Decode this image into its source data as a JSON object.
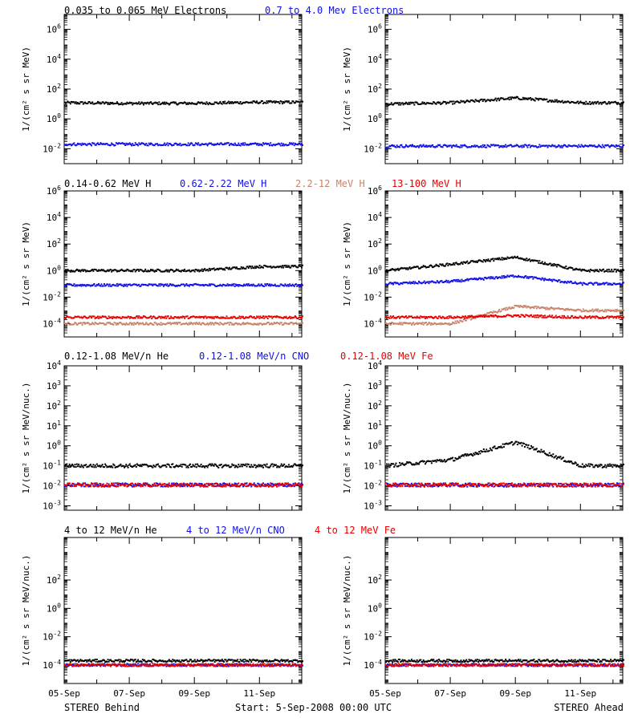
{
  "colors": {
    "black": "#000000",
    "blue": "#1010e6",
    "tan": "#c8846a",
    "red": "#e60000",
    "gray": "#8c8c8c"
  },
  "row_headers": [
    [
      {
        "text": "0.035 to 0.065 MeV Electrons",
        "color": "#000000"
      },
      {
        "text": "0.7 to 4.0 Mev Electrons",
        "color": "#1010e6"
      }
    ],
    [
      {
        "text": "0.14-0.62 MeV H",
        "color": "#000000"
      },
      {
        "text": "0.62-2.22 MeV H",
        "color": "#1010e6"
      },
      {
        "text": "2.2-12 MeV H",
        "color": "#c8846a"
      },
      {
        "text": "13-100 MeV H",
        "color": "#e60000"
      }
    ],
    [
      {
        "text": "0.12-1.08 MeV/n He",
        "color": "#000000"
      },
      {
        "text": "0.12-1.08 MeV/n CNO",
        "color": "#1010e6"
      },
      {
        "text": "0.12-1.08 MeV Fe",
        "color": "#e60000"
      }
    ],
    [
      {
        "text": "4 to 12 MeV/n He",
        "color": "#000000"
      },
      {
        "text": "4 to 12 MeV/n CNO",
        "color": "#1010e6"
      },
      {
        "text": "4 to 12 MeV Fe",
        "color": "#e60000"
      }
    ]
  ],
  "footer": {
    "left": "STEREO Behind",
    "center": "Start:  5-Sep-2008 00:00 UTC",
    "right": "STEREO Ahead"
  },
  "x_ticks": [
    "05-Sep",
    "07-Sep",
    "09-Sep",
    "11-Sep"
  ],
  "chart_data": [
    {
      "type": "scatter",
      "row": 0,
      "spacecraft": "STEREO Behind",
      "scale": "log",
      "ylabel": "1/(cm² s sr MeV)",
      "ylim": [
        0.001,
        10000000
      ],
      "yticks": [
        "10^-2",
        "10^0",
        "10^2",
        "10^4",
        "10^6"
      ],
      "x": [
        "05-Sep",
        "07-Sep",
        "09-Sep",
        "11-Sep"
      ],
      "series": [
        {
          "name": "0.035 to 0.065 MeV Electrons",
          "color": "#000000",
          "values": [
            12,
            11,
            11,
            13
          ]
        },
        {
          "name": "0.7 to 4.0 Mev Electrons",
          "color": "#1010e6",
          "values": [
            0.02,
            0.02,
            0.02,
            0.02
          ]
        }
      ]
    },
    {
      "type": "scatter",
      "row": 0,
      "spacecraft": "STEREO Ahead",
      "scale": "log",
      "ylabel": "1/(cm² s sr MeV)",
      "ylim": [
        0.001,
        10000000
      ],
      "yticks": [
        "10^-2",
        "10^0",
        "10^2",
        "10^4",
        "10^6"
      ],
      "x": [
        "05-Sep",
        "07-Sep",
        "09-Sep",
        "11-Sep"
      ],
      "series": [
        {
          "name": "0.035 to 0.065 MeV Electrons",
          "color": "#000000",
          "values": [
            10,
            12,
            25,
            12
          ]
        },
        {
          "name": "0.7 to 4.0 Mev Electrons",
          "color": "#1010e6",
          "values": [
            0.015,
            0.015,
            0.015,
            0.015
          ]
        }
      ]
    },
    {
      "type": "scatter",
      "row": 1,
      "spacecraft": "STEREO Behind",
      "scale": "log",
      "ylabel": "1/(cm² s sr MeV)",
      "ylim": [
        1e-05,
        1000000
      ],
      "yticks": [
        "10^-4",
        "10^-2",
        "10^0",
        "10^2",
        "10^4",
        "10^6"
      ],
      "x": [
        "05-Sep",
        "07-Sep",
        "09-Sep",
        "11-Sep"
      ],
      "series": [
        {
          "name": "0.14-0.62 MeV H",
          "color": "#000000",
          "values": [
            1.0,
            1.0,
            1.0,
            2.0
          ]
        },
        {
          "name": "0.62-2.22 MeV H",
          "color": "#1010e6",
          "values": [
            0.08,
            0.08,
            0.08,
            0.08
          ]
        },
        {
          "name": "2.2-12 MeV H",
          "color": "#c8846a",
          "values": [
            0.0001,
            0.0001,
            0.0001,
            0.0001
          ]
        },
        {
          "name": "13-100 MeV H",
          "color": "#e60000",
          "values": [
            0.0003,
            0.0003,
            0.0003,
            0.0003
          ]
        }
      ]
    },
    {
      "type": "scatter",
      "row": 1,
      "spacecraft": "STEREO Ahead",
      "scale": "log",
      "ylabel": "1/(cm² s sr MeV)",
      "ylim": [
        1e-05,
        1000000
      ],
      "yticks": [
        "10^-4",
        "10^-2",
        "10^0",
        "10^2",
        "10^4",
        "10^6"
      ],
      "x": [
        "05-Sep",
        "07-Sep",
        "09-Sep",
        "11-Sep"
      ],
      "series": [
        {
          "name": "0.14-0.62 MeV H",
          "color": "#000000",
          "values": [
            1.0,
            3.0,
            10,
            1.0
          ]
        },
        {
          "name": "0.62-2.22 MeV H",
          "color": "#1010e6",
          "values": [
            0.1,
            0.15,
            0.4,
            0.1
          ]
        },
        {
          "name": "2.2-12 MeV H",
          "color": "#c8846a",
          "values": [
            0.0001,
            0.0001,
            0.002,
            0.001
          ]
        },
        {
          "name": "13-100 MeV H",
          "color": "#e60000",
          "values": [
            0.0003,
            0.0003,
            0.0004,
            0.0003
          ]
        }
      ]
    },
    {
      "type": "scatter",
      "row": 2,
      "spacecraft": "STEREO Behind",
      "scale": "log",
      "ylabel": "1/(cm² s sr MeV/nuc.)",
      "ylim": [
        0.0006,
        10000
      ],
      "yticks": [
        "10^-3",
        "10^-2",
        "10^-1",
        "10^0",
        "10^1",
        "10^2",
        "10^3",
        "10^4"
      ],
      "x": [
        "05-Sep",
        "07-Sep",
        "09-Sep",
        "11-Sep"
      ],
      "series": [
        {
          "name": "0.12-1.08 MeV/n He",
          "color": "#000000",
          "values": [
            0.1,
            0.1,
            0.1,
            0.1
          ]
        },
        {
          "name": "0.12-1.08 MeV/n CNO",
          "color": "#1010e6",
          "values": [
            0.011,
            0.011,
            0.011,
            0.011
          ]
        },
        {
          "name": "0.12-1.08 MeV Fe",
          "color": "#e60000",
          "values": [
            0.011,
            0.011,
            0.011,
            0.011
          ]
        }
      ]
    },
    {
      "type": "scatter",
      "row": 2,
      "spacecraft": "STEREO Ahead",
      "scale": "log",
      "ylabel": "1/(cm² s sr MeV/nuc.)",
      "ylim": [
        0.0006,
        10000
      ],
      "yticks": [
        "10^-3",
        "10^-2",
        "10^-1",
        "10^0",
        "10^1",
        "10^2",
        "10^3",
        "10^4"
      ],
      "x": [
        "05-Sep",
        "07-Sep",
        "09-Sep",
        "11-Sep"
      ],
      "series": [
        {
          "name": "0.12-1.08 MeV/n He",
          "color": "#000000",
          "values": [
            0.1,
            0.2,
            1.5,
            0.1
          ]
        },
        {
          "name": "0.12-1.08 MeV/n CNO",
          "color": "#1010e6",
          "values": [
            0.011,
            0.011,
            0.011,
            0.011
          ]
        },
        {
          "name": "0.12-1.08 MeV Fe",
          "color": "#e60000",
          "values": [
            0.011,
            0.011,
            0.011,
            0.011
          ]
        }
      ]
    },
    {
      "type": "scatter",
      "row": 3,
      "spacecraft": "STEREO Behind",
      "scale": "log",
      "ylabel": "1/(cm² s sr MeV/nuc.)",
      "ylim": [
        5e-06,
        100000
      ],
      "yticks": [
        "10^-4",
        "10^-2",
        "10^0",
        "10^2"
      ],
      "x": [
        "05-Sep",
        "07-Sep",
        "09-Sep",
        "11-Sep"
      ],
      "series": [
        {
          "name": "4 to 12 MeV/n He",
          "color": "#000000",
          "values": [
            0.0002,
            0.0002,
            0.0002,
            0.0002
          ]
        },
        {
          "name": "4 to 12 MeV/n CNO",
          "color": "#1010e6",
          "values": [
            0.0001,
            0.0001,
            0.0001,
            0.0001
          ]
        },
        {
          "name": "4 to 12 MeV Fe",
          "color": "#e60000",
          "values": [
            0.0001,
            0.0001,
            0.0001,
            0.0001
          ]
        }
      ]
    },
    {
      "type": "scatter",
      "row": 3,
      "spacecraft": "STEREO Ahead",
      "scale": "log",
      "ylabel": "1/(cm² s sr MeV/nuc.)",
      "ylim": [
        5e-06,
        100000
      ],
      "yticks": [
        "10^-4",
        "10^-2",
        "10^0",
        "10^2"
      ],
      "x": [
        "05-Sep",
        "07-Sep",
        "09-Sep",
        "11-Sep"
      ],
      "series": [
        {
          "name": "4 to 12 MeV/n He",
          "color": "#000000",
          "values": [
            0.0002,
            0.0002,
            0.0002,
            0.0002
          ]
        },
        {
          "name": "4 to 12 MeV/n CNO",
          "color": "#1010e6",
          "values": [
            0.0001,
            0.0001,
            0.0001,
            0.0001
          ]
        },
        {
          "name": "4 to 12 MeV Fe",
          "color": "#e60000",
          "values": [
            0.0001,
            0.0001,
            0.0001,
            0.0001
          ]
        }
      ]
    }
  ]
}
